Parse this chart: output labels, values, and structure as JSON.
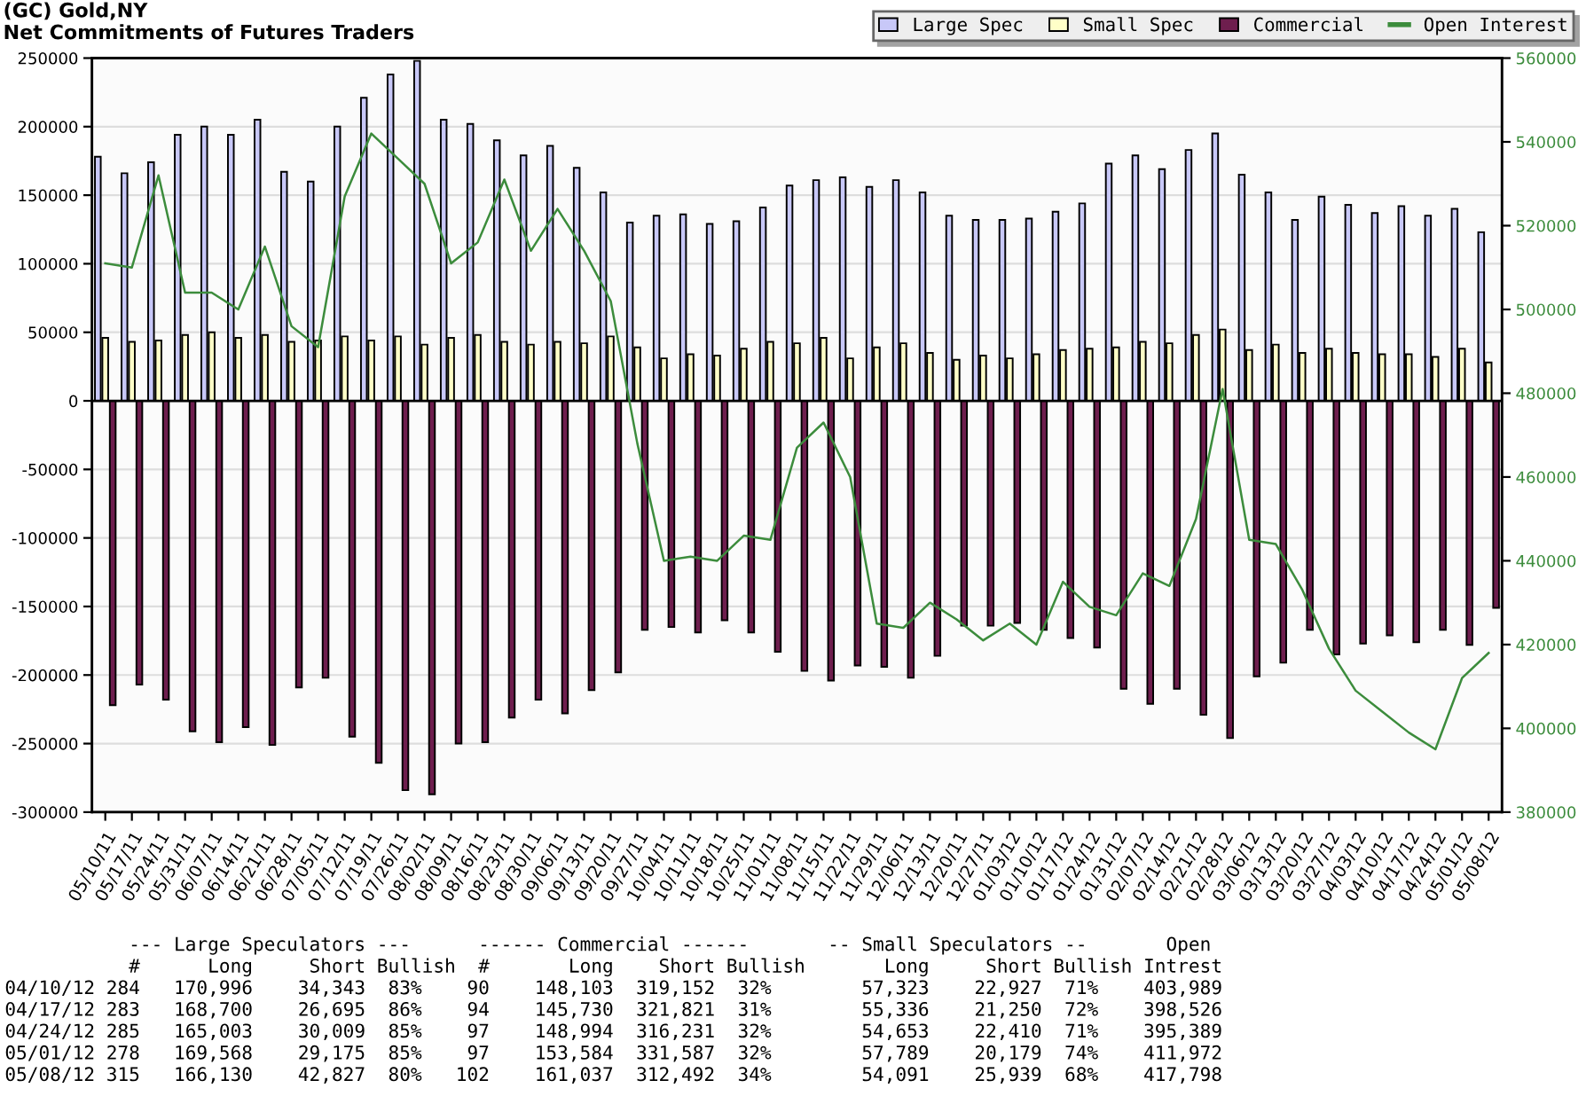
{
  "chart_data": {
    "type": "bar",
    "title": "(GC) Gold,NY",
    "subtitle": "Net Commitments of Futures Traders",
    "categories": [
      "05/10/11",
      "05/17/11",
      "05/24/11",
      "05/31/11",
      "06/07/11",
      "06/14/11",
      "06/21/11",
      "06/28/11",
      "07/05/11",
      "07/12/11",
      "07/19/11",
      "07/26/11",
      "08/02/11",
      "08/09/11",
      "08/16/11",
      "08/23/11",
      "08/30/11",
      "09/06/11",
      "09/13/11",
      "09/20/11",
      "09/27/11",
      "10/04/11",
      "10/11/11",
      "10/18/11",
      "10/25/11",
      "11/01/11",
      "11/08/11",
      "11/15/11",
      "11/22/11",
      "11/29/11",
      "12/06/11",
      "12/13/11",
      "12/20/11",
      "12/27/11",
      "01/03/12",
      "01/10/12",
      "01/17/12",
      "01/24/12",
      "01/31/12",
      "02/07/12",
      "02/14/12",
      "02/21/12",
      "02/28/12",
      "03/06/12",
      "03/13/12",
      "03/20/12",
      "03/27/12",
      "04/03/12",
      "04/10/12",
      "04/17/12",
      "04/24/12",
      "05/01/12",
      "05/08/12"
    ],
    "series": [
      {
        "name": "Large Spec",
        "color": "#c8c8f8",
        "values": [
          178000,
          166000,
          174000,
          194000,
          200000,
          194000,
          205000,
          167000,
          160000,
          200000,
          221000,
          238000,
          248000,
          205000,
          202000,
          190000,
          179000,
          186000,
          170000,
          152000,
          130000,
          135000,
          136000,
          129000,
          131000,
          141000,
          157000,
          161000,
          163000,
          156000,
          161000,
          152000,
          135000,
          132000,
          132000,
          133000,
          138000,
          144000,
          173000,
          179000,
          169000,
          183000,
          195000,
          165000,
          152000,
          132000,
          149000,
          143000,
          137000,
          142000,
          135000,
          140000,
          123000
        ]
      },
      {
        "name": "Small Spec",
        "color": "#ffffc8",
        "values": [
          46000,
          43000,
          44000,
          48000,
          50000,
          46000,
          48000,
          43000,
          44000,
          47000,
          44000,
          47000,
          41000,
          46000,
          48000,
          43000,
          41000,
          43000,
          42000,
          47000,
          39000,
          31000,
          34000,
          33000,
          38000,
          43000,
          42000,
          46000,
          31000,
          39000,
          42000,
          35000,
          30000,
          33000,
          31000,
          34000,
          37000,
          38000,
          39000,
          43000,
          42000,
          48000,
          52000,
          37000,
          41000,
          35000,
          38000,
          35000,
          34000,
          34000,
          32000,
          38000,
          28000
        ]
      },
      {
        "name": "Commercial",
        "color": "#6e1e4e",
        "values": [
          -222000,
          -207000,
          -218000,
          -241000,
          -249000,
          -238000,
          -251000,
          -209000,
          -202000,
          -245000,
          -264000,
          -284000,
          -287000,
          -250000,
          -249000,
          -231000,
          -218000,
          -228000,
          -211000,
          -198000,
          -167000,
          -165000,
          -169000,
          -160000,
          -169000,
          -183000,
          -197000,
          -204000,
          -193000,
          -194000,
          -202000,
          -186000,
          -164000,
          -164000,
          -162000,
          -167000,
          -173000,
          -180000,
          -210000,
          -221000,
          -210000,
          -229000,
          -246000,
          -201000,
          -191000,
          -167000,
          -185000,
          -177000,
          -171000,
          -176000,
          -167000,
          -178000,
          -151000
        ]
      },
      {
        "name": "Open Interest",
        "type": "line",
        "axis": "y2",
        "color": "#3c8c3c",
        "values": [
          511000,
          510000,
          532000,
          504000,
          504000,
          500000,
          515000,
          496000,
          491000,
          527000,
          542000,
          536000,
          530000,
          511000,
          516000,
          531000,
          514000,
          524000,
          514000,
          502000,
          468000,
          440000,
          441000,
          440000,
          446000,
          445000,
          467000,
          473000,
          460000,
          425000,
          424000,
          430000,
          426000,
          421000,
          425000,
          420000,
          435000,
          429000,
          427000,
          437000,
          434000,
          450000,
          481000,
          445000,
          444000,
          433000,
          419000,
          409000,
          404000,
          399000,
          395000,
          412000,
          418000
        ]
      }
    ],
    "ylim": [
      -300000,
      250000
    ],
    "yticks": [
      -300000,
      -250000,
      -200000,
      -150000,
      -100000,
      -50000,
      0,
      50000,
      100000,
      150000,
      200000,
      250000
    ],
    "y2lim": [
      380000,
      560000
    ],
    "y2ticks": [
      380000,
      400000,
      420000,
      440000,
      460000,
      480000,
      500000,
      520000,
      540000,
      560000
    ],
    "grid": "y",
    "legend": "top right",
    "annotations": [
      "           --- Large Speculators ---      ------ Commercial ------       -- Small Speculators --       Open",
      "           #      Long     Short Bullish  #       Long    Short Bullish       Long     Short Bullish Intrest",
      "04/10/12 284   170,996    34,343  83%    90    148,103  319,152  32%        57,323    22,927  71%    403,989",
      "04/17/12 283   168,700    26,695  86%    94    145,730  321,821  31%        55,336    21,250  72%    398,526",
      "04/24/12 285   165,003    30,009  85%    97    148,994  316,231  32%        54,653    22,410  71%    395,389",
      "05/01/12 278   169,568    29,175  85%    97    153,584  331,587  32%        57,789    20,179  74%    411,972",
      "05/08/12 315   166,130    42,827  80%   102    161,037  312,492  34%        54,091    25,939  68%    417,798"
    ]
  }
}
